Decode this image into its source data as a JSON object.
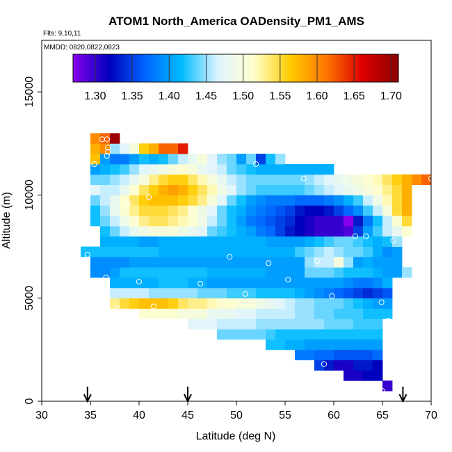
{
  "chart_data": {
    "type": "heatmap",
    "title": "ATOM1 North_America OADensity_PM1_AMS",
    "flights_label": "Flts: 9,10,11",
    "dates_label": "MMDD: 0820,0822,0823",
    "xlabel": "Latitude (deg N)",
    "ylabel": "Altitude (m)",
    "xlim": [
      30,
      70
    ],
    "ylim": [
      0,
      17500
    ],
    "x_ticks": [
      "30",
      "35",
      "40",
      "45",
      "50",
      "55",
      "60",
      "65",
      "70"
    ],
    "y_ticks": [
      "0",
      "5000",
      "10000",
      "15000"
    ],
    "colorbar": {
      "range": [
        1.27,
        1.71
      ],
      "tick_labels": [
        "1.30",
        "1.35",
        "1.40",
        "1.45",
        "1.50",
        "1.55",
        "1.60",
        "1.65",
        "1.70"
      ],
      "colors": [
        "#8800ee",
        "#0000bb",
        "#0066ff",
        "#00bbff",
        "#dff4ff",
        "#ffffcc",
        "#ffcc00",
        "#ff7700",
        "#dd0000",
        "#8b0000"
      ]
    },
    "arrows_latitude": [
      34.7,
      45.0,
      67.1
    ],
    "grid_note": "cells 1 deg latitude by 500 m altitude; latitude band A runs 35-65 N",
    "rows": [
      {
        "alt": 500,
        "lat0": 65,
        "values": [
          1.3
        ]
      },
      {
        "alt": 1000,
        "lat0": 61,
        "values": [
          1.31,
          1.31,
          1.32,
          1.32
        ]
      },
      {
        "alt": 1500,
        "lat0": 58,
        "values": [
          1.35,
          1.33,
          1.31,
          1.31,
          1.33,
          1.33,
          1.32
        ]
      },
      {
        "alt": 2000,
        "lat0": 56,
        "values": [
          1.38,
          1.38,
          1.37,
          1.37,
          1.36,
          1.36,
          1.36,
          1.36,
          1.37
        ]
      },
      {
        "alt": 2500,
        "lat0": 53,
        "values": [
          1.42,
          1.42,
          1.41,
          1.41,
          1.4,
          1.4,
          1.4,
          1.4,
          1.4,
          1.4,
          1.4,
          1.4
        ]
      },
      {
        "alt": 3000,
        "lat0": 48,
        "values": [
          1.44,
          1.44,
          1.44,
          1.44,
          1.44,
          1.43,
          1.42,
          1.42,
          1.42,
          1.42,
          1.42,
          1.42,
          1.42,
          1.42,
          1.42,
          1.42,
          1.42
        ]
      },
      {
        "alt": 3500,
        "lat0": 45,
        "values": [
          1.47,
          1.47,
          1.47,
          1.46,
          1.46,
          1.46,
          1.46,
          1.45,
          1.45,
          1.45,
          1.45,
          1.45,
          1.45,
          1.45,
          1.44,
          1.44,
          1.44,
          1.43,
          1.43,
          1.43
        ]
      },
      {
        "alt": 4000,
        "lat0": 40,
        "values": [
          1.51,
          1.51,
          1.51,
          1.51,
          1.5,
          1.5,
          1.5,
          1.48,
          1.48,
          1.48,
          1.47,
          1.47,
          1.46,
          1.46,
          1.46,
          1.46,
          1.45,
          1.45,
          1.44,
          1.44,
          1.43,
          1.43,
          1.43,
          1.42,
          1.42,
          1.42
        ]
      },
      {
        "alt": 4500,
        "lat0": 37,
        "values": [
          1.53,
          1.55,
          1.56,
          1.57,
          1.57,
          1.57,
          1.56,
          1.54,
          1.53,
          1.53,
          1.52,
          1.51,
          1.51,
          1.5,
          1.5,
          1.49,
          1.48,
          1.47,
          1.46,
          1.45,
          1.45,
          1.44,
          1.44,
          1.44,
          1.43,
          1.42,
          1.41,
          1.4,
          1.4
        ]
      },
      {
        "alt": 5000,
        "lat0": 37,
        "values": [
          1.46,
          1.46,
          1.46,
          1.46,
          1.45,
          1.45,
          1.45,
          1.45,
          1.45,
          1.44,
          1.44,
          1.44,
          1.43,
          1.43,
          1.43,
          1.42,
          1.42,
          1.42,
          1.42,
          1.41,
          1.4,
          1.39,
          1.38,
          1.37,
          1.36,
          1.35,
          1.34,
          1.35,
          1.36
        ]
      },
      {
        "alt": 5500,
        "lat0": 37,
        "values": [
          1.41,
          1.41,
          1.41,
          1.41,
          1.41,
          1.42,
          1.42,
          1.42,
          1.41,
          1.41,
          1.4,
          1.4,
          1.4,
          1.4,
          1.4,
          1.4,
          1.4,
          1.4,
          1.4,
          1.4,
          1.4,
          1.4,
          1.4,
          1.4,
          1.39,
          1.38,
          1.38,
          1.39,
          1.41
        ]
      },
      {
        "alt": 6000,
        "lat0": 35,
        "values": [
          1.39,
          1.39,
          1.4,
          1.42,
          1.42,
          1.42,
          1.42,
          1.42,
          1.42,
          1.42,
          1.42,
          1.42,
          1.41,
          1.41,
          1.41,
          1.41,
          1.41,
          1.41,
          1.4,
          1.4,
          1.4,
          1.4,
          1.44,
          1.44,
          1.44,
          1.43,
          1.42,
          1.42,
          1.42,
          1.41,
          1.4,
          1.4,
          1.45
        ]
      },
      {
        "alt": 6500,
        "lat0": 35,
        "values": [
          1.39,
          1.39,
          1.39,
          1.39,
          1.4,
          1.4,
          1.4,
          1.4,
          1.4,
          1.4,
          1.4,
          1.4,
          1.4,
          1.4,
          1.4,
          1.4,
          1.4,
          1.4,
          1.4,
          1.4,
          1.4,
          1.4,
          1.45,
          1.46,
          1.46,
          1.5,
          1.45,
          1.4,
          1.41,
          1.4,
          1.4,
          1.4
        ]
      },
      {
        "alt": 7000,
        "lat0": 34,
        "values": [
          1.42,
          1.42,
          1.42,
          1.42,
          1.42,
          1.42,
          1.42,
          1.42,
          1.41,
          1.41,
          1.41,
          1.41,
          1.41,
          1.41,
          1.41,
          1.41,
          1.41,
          1.41,
          1.41,
          1.41,
          1.41,
          1.41,
          1.43,
          1.44,
          1.45,
          1.46,
          1.45,
          1.44,
          1.44,
          1.43,
          1.41,
          1.39,
          1.4
        ]
      },
      {
        "alt": 7500,
        "lat0": 36,
        "values": [
          1.41,
          1.41,
          1.41,
          1.41,
          1.4,
          1.4,
          1.41,
          1.41,
          1.41,
          1.41,
          1.41,
          1.41,
          1.41,
          1.41,
          1.41,
          1.41,
          1.41,
          1.4,
          1.4,
          1.4,
          1.4,
          1.41,
          1.42,
          1.43,
          1.44,
          1.44,
          1.43,
          1.42,
          1.41,
          1.42,
          1.45
        ]
      },
      {
        "alt": 8000,
        "lat0": 36,
        "values": [
          1.42,
          1.44,
          1.46,
          1.48,
          1.49,
          1.5,
          1.5,
          1.5,
          1.49,
          1.48,
          1.47,
          1.44,
          1.43,
          1.42,
          1.41,
          1.4,
          1.38,
          1.37,
          1.35,
          1.33,
          1.32,
          1.31,
          1.3,
          1.3,
          1.3,
          1.29,
          1.35,
          1.4,
          1.43,
          1.46,
          1.48,
          1.51
        ]
      },
      {
        "alt": 8500,
        "lat0": 35,
        "values": [
          1.42,
          1.44,
          1.46,
          1.49,
          1.51,
          1.53,
          1.54,
          1.54,
          1.53,
          1.52,
          1.51,
          1.49,
          1.46,
          1.44,
          1.42,
          1.4,
          1.38,
          1.37,
          1.36,
          1.35,
          1.34,
          1.32,
          1.31,
          1.3,
          1.3,
          1.3,
          1.27,
          1.33,
          1.38,
          1.42,
          1.46,
          1.51,
          1.55
        ]
      },
      {
        "alt": 9000,
        "lat0": 35,
        "values": [
          1.42,
          1.45,
          1.48,
          1.51,
          1.53,
          1.55,
          1.55,
          1.55,
          1.54,
          1.53,
          1.51,
          1.49,
          1.47,
          1.44,
          1.42,
          1.41,
          1.39,
          1.38,
          1.37,
          1.36,
          1.35,
          1.33,
          1.32,
          1.32,
          1.33,
          1.35,
          1.37,
          1.39,
          1.43,
          1.46,
          1.5,
          1.55,
          1.58
        ]
      },
      {
        "alt": 9500,
        "lat0": 35,
        "values": [
          1.44,
          1.46,
          1.48,
          1.51,
          1.54,
          1.56,
          1.57,
          1.57,
          1.57,
          1.56,
          1.55,
          1.53,
          1.5,
          1.47,
          1.44,
          1.42,
          1.4,
          1.39,
          1.38,
          1.38,
          1.38,
          1.37,
          1.37,
          1.37,
          1.38,
          1.39,
          1.41,
          1.43,
          1.46,
          1.49,
          1.52,
          1.55,
          1.58
        ]
      },
      {
        "alt": 10000,
        "lat0": 35,
        "values": [
          1.47,
          1.46,
          1.46,
          1.48,
          1.51,
          1.54,
          1.56,
          1.58,
          1.59,
          1.58,
          1.56,
          1.54,
          1.52,
          1.49,
          1.47,
          1.45,
          1.44,
          1.43,
          1.43,
          1.43,
          1.43,
          1.43,
          1.44,
          1.45,
          1.46,
          1.47,
          1.48,
          1.49,
          1.5,
          1.51,
          1.53,
          1.55,
          1.58
        ]
      },
      {
        "alt": 10500,
        "lat0": 35,
        "values": [
          1.44,
          1.44,
          1.45,
          1.46,
          1.48,
          1.5,
          1.53,
          1.55,
          1.56,
          1.56,
          1.54,
          1.52,
          1.5,
          1.48,
          1.46,
          1.45,
          1.44,
          1.44,
          1.44,
          1.44,
          1.44,
          1.44,
          1.45,
          1.46,
          1.47,
          1.48,
          1.49,
          1.5,
          1.51,
          1.52,
          1.54,
          1.56,
          1.58,
          1.6,
          1.62
        ]
      },
      {
        "alt": 11000,
        "lat0": 35,
        "values": [
          1.4,
          1.41,
          1.42,
          1.43,
          1.45,
          1.47,
          1.48,
          1.49,
          1.5,
          1.51,
          1.5,
          1.48,
          1.47,
          1.46,
          1.44,
          1.43,
          1.42,
          1.41,
          1.41,
          1.41,
          1.41,
          1.41,
          1.41,
          1.41,
          1.41
        ]
      },
      {
        "alt": 11500,
        "lat0": 35,
        "values": [
          1.57,
          1.4,
          1.38,
          1.38,
          1.4,
          1.42,
          1.41,
          1.42,
          1.44,
          1.46,
          1.48,
          1.5,
          1.47,
          1.45,
          1.44,
          1.4,
          1.44,
          1.35,
          1.42,
          1.45
        ]
      },
      {
        "alt": 12000,
        "lat0": 35,
        "values": [
          1.58,
          1.6,
          1.45,
          1.47,
          1.5,
          1.56,
          1.58,
          1.62,
          1.62,
          1.65
        ]
      },
      {
        "alt": 12500,
        "lat0": 35,
        "values": [
          1.6,
          1.62,
          1.7
        ]
      }
    ],
    "points": [
      {
        "lat": 36.2,
        "alt": 12700
      },
      {
        "lat": 36.7,
        "alt": 12700
      },
      {
        "lat": 36.8,
        "alt": 12300
      },
      {
        "lat": 36.8,
        "alt": 12100
      },
      {
        "lat": 36.7,
        "alt": 11900
      },
      {
        "lat": 35.4,
        "alt": 11500
      },
      {
        "lat": 52.0,
        "alt": 11500
      },
      {
        "lat": 56.9,
        "alt": 10800
      },
      {
        "lat": 61.1,
        "alt": 10600
      },
      {
        "lat": 70.0,
        "alt": 10800
      },
      {
        "lat": 41.0,
        "alt": 9900
      },
      {
        "lat": 38.9,
        "alt": 9600
      },
      {
        "lat": 62.2,
        "alt": 8000
      },
      {
        "lat": 63.3,
        "alt": 8000
      },
      {
        "lat": 66.1,
        "alt": 7800
      },
      {
        "lat": 34.7,
        "alt": 7100
      },
      {
        "lat": 49.3,
        "alt": 7000
      },
      {
        "lat": 53.3,
        "alt": 6700
      },
      {
        "lat": 58.3,
        "alt": 6800
      },
      {
        "lat": 36.6,
        "alt": 6000
      },
      {
        "lat": 40.0,
        "alt": 5800
      },
      {
        "lat": 46.3,
        "alt": 5700
      },
      {
        "lat": 55.3,
        "alt": 5900
      },
      {
        "lat": 50.9,
        "alt": 5200
      },
      {
        "lat": 59.8,
        "alt": 5100
      },
      {
        "lat": 64.9,
        "alt": 4800
      },
      {
        "lat": 37.8,
        "alt": 4500
      },
      {
        "lat": 41.5,
        "alt": 4600
      },
      {
        "lat": 65.6,
        "alt": 3900
      },
      {
        "lat": 59.0,
        "alt": 1800
      },
      {
        "lat": 65.0,
        "alt": 500
      }
    ]
  }
}
